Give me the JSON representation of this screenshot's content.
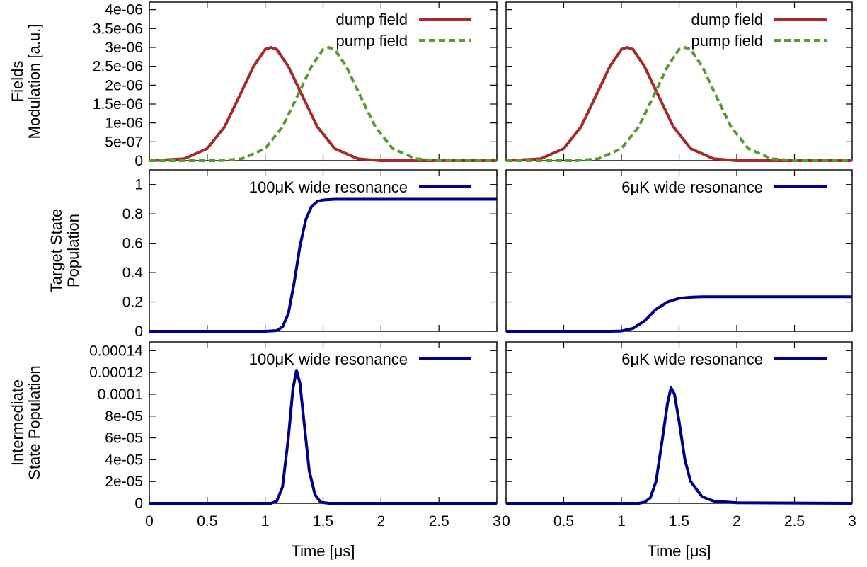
{
  "colors": {
    "dump": "#a52a2a",
    "pump": "#5a9a32",
    "population": "#00008b",
    "frame": "#000000",
    "background": "#ffffff"
  },
  "chart_data": [
    {
      "type": "line",
      "panel": "row1-left",
      "ylabel_lines": [
        "Fields",
        "Modulation [a.u.]"
      ],
      "xlim": [
        0,
        3
      ],
      "ylim": [
        0,
        4.2e-06
      ],
      "yticks": [
        0,
        5e-07,
        1e-06,
        1.5e-06,
        2e-06,
        2.5e-06,
        3e-06,
        3.5e-06,
        4e-06
      ],
      "ytick_labels": [
        "0",
        "5e-07",
        "1e-06",
        "1.5e-06",
        "2e-06",
        "2.5e-06",
        "3e-06",
        "3.5e-06",
        "4e-06"
      ],
      "legend_position": "top-right",
      "series": [
        {
          "name": "dump field",
          "style": "solid",
          "color_key": "dump",
          "x": [
            0,
            0.3,
            0.5,
            0.65,
            0.8,
            0.9,
            1.0,
            1.05,
            1.1,
            1.2,
            1.3,
            1.45,
            1.6,
            1.8,
            2.0,
            3.0
          ],
          "y": [
            0,
            5e-08,
            3.2e-07,
            9e-07,
            1.85e-06,
            2.5e-06,
            2.95e-06,
            3e-06,
            2.95e-06,
            2.5e-06,
            1.85e-06,
            9e-07,
            3.2e-07,
            5e-08,
            0,
            0
          ]
        },
        {
          "name": "pump field",
          "style": "dashed",
          "color_key": "pump",
          "x": [
            0,
            0.6,
            0.8,
            1.0,
            1.15,
            1.3,
            1.4,
            1.5,
            1.55,
            1.6,
            1.7,
            1.8,
            1.95,
            2.1,
            2.3,
            2.5,
            3.0
          ],
          "y": [
            0,
            0,
            5e-08,
            3.2e-07,
            9e-07,
            1.85e-06,
            2.5e-06,
            2.95e-06,
            3e-06,
            2.95e-06,
            2.5e-06,
            1.85e-06,
            9e-07,
            3.2e-07,
            5e-08,
            0,
            0
          ]
        }
      ]
    },
    {
      "type": "line",
      "panel": "row1-right",
      "xlim": [
        0,
        3
      ],
      "ylim": [
        0,
        4.2e-06
      ],
      "yticks": [
        0,
        5e-07,
        1e-06,
        1.5e-06,
        2e-06,
        2.5e-06,
        3e-06,
        3.5e-06,
        4e-06
      ],
      "legend_position": "top-right",
      "series": [
        {
          "name": "dump field",
          "style": "solid",
          "color_key": "dump",
          "x": [
            0,
            0.3,
            0.5,
            0.65,
            0.8,
            0.9,
            1.0,
            1.05,
            1.1,
            1.2,
            1.3,
            1.45,
            1.6,
            1.8,
            2.0,
            3.0
          ],
          "y": [
            0,
            5e-08,
            3.2e-07,
            9e-07,
            1.85e-06,
            2.5e-06,
            2.95e-06,
            3e-06,
            2.95e-06,
            2.5e-06,
            1.85e-06,
            9e-07,
            3.2e-07,
            5e-08,
            0,
            0
          ]
        },
        {
          "name": "pump field",
          "style": "dashed",
          "color_key": "pump",
          "x": [
            0,
            0.6,
            0.8,
            1.0,
            1.15,
            1.3,
            1.4,
            1.5,
            1.55,
            1.6,
            1.7,
            1.8,
            1.95,
            2.1,
            2.3,
            2.5,
            3.0
          ],
          "y": [
            0,
            0,
            5e-08,
            3.2e-07,
            9e-07,
            1.85e-06,
            2.5e-06,
            2.95e-06,
            3e-06,
            2.95e-06,
            2.5e-06,
            1.85e-06,
            9e-07,
            3.2e-07,
            5e-08,
            0,
            0
          ]
        }
      ]
    },
    {
      "type": "line",
      "panel": "row2-left",
      "ylabel_lines": [
        "Target State",
        "Population"
      ],
      "xlim": [
        0,
        3
      ],
      "ylim": [
        0,
        1.1
      ],
      "yticks": [
        0,
        0.2,
        0.4,
        0.6,
        0.8,
        1
      ],
      "ytick_labels": [
        "0",
        "0.2",
        "0.4",
        "0.6",
        "0.8",
        "1"
      ],
      "legend_position": "top-right",
      "series": [
        {
          "name": "100μK wide resonance",
          "style": "solid",
          "color_key": "population",
          "x": [
            0,
            1.0,
            1.1,
            1.15,
            1.2,
            1.25,
            1.3,
            1.35,
            1.4,
            1.45,
            1.5,
            1.6,
            2.0,
            3.0
          ],
          "y": [
            0,
            0,
            0.005,
            0.03,
            0.12,
            0.33,
            0.58,
            0.76,
            0.85,
            0.885,
            0.895,
            0.9,
            0.9,
            0.9
          ]
        }
      ]
    },
    {
      "type": "line",
      "panel": "row2-right",
      "xlim": [
        0,
        3
      ],
      "ylim": [
        0,
        1.1
      ],
      "yticks": [
        0,
        0.2,
        0.4,
        0.6,
        0.8,
        1
      ],
      "legend_position": "top-right",
      "series": [
        {
          "name": "6μK wide resonance",
          "style": "solid",
          "color_key": "population",
          "x": [
            0,
            0.9,
            1.0,
            1.1,
            1.2,
            1.3,
            1.4,
            1.5,
            1.6,
            1.7,
            2.0,
            3.0
          ],
          "y": [
            0,
            0,
            0.002,
            0.02,
            0.07,
            0.15,
            0.2,
            0.225,
            0.232,
            0.235,
            0.235,
            0.235
          ]
        }
      ]
    },
    {
      "type": "line",
      "panel": "row3-left",
      "ylabel_lines": [
        "Intermediate",
        "State Population"
      ],
      "xlabel": "Time [μs]",
      "xlim": [
        0,
        3
      ],
      "ylim": [
        0,
        0.000148
      ],
      "xticks": [
        0,
        0.5,
        1,
        1.5,
        2,
        2.5,
        3
      ],
      "xtick_labels": [
        "0",
        "0.5",
        "1",
        "1.5",
        "2",
        "2.5",
        "3"
      ],
      "yticks": [
        0,
        2e-05,
        4e-05,
        6e-05,
        8e-05,
        0.0001,
        0.00012,
        0.00014
      ],
      "ytick_labels": [
        "0",
        "2e-05",
        "4e-05",
        "6e-05",
        "8e-05",
        "0.0001",
        "0.00012",
        "0.00014"
      ],
      "legend_position": "top-right",
      "series": [
        {
          "name": "100μK wide resonance",
          "style": "solid",
          "color_key": "population",
          "x": [
            0,
            1.05,
            1.1,
            1.15,
            1.2,
            1.24,
            1.27,
            1.3,
            1.34,
            1.38,
            1.43,
            1.48,
            1.55,
            3.0
          ],
          "y": [
            0,
            0,
            2e-06,
            1.5e-05,
            6e-05,
            0.000105,
            0.000122,
            0.00011,
            7e-05,
            3e-05,
            8e-06,
            1e-06,
            0,
            0
          ]
        }
      ]
    },
    {
      "type": "line",
      "panel": "row3-right",
      "xlabel": "Time [μs]",
      "xlim": [
        0,
        3
      ],
      "ylim": [
        0,
        0.000148
      ],
      "xticks": [
        0,
        0.5,
        1,
        1.5,
        2,
        2.5,
        3
      ],
      "xtick_labels": [
        "0",
        "0.5",
        "1",
        "1.5",
        "2",
        "2.5",
        "3"
      ],
      "yticks": [
        0,
        2e-05,
        4e-05,
        6e-05,
        8e-05,
        0.0001,
        0.00012,
        0.00014
      ],
      "legend_position": "top-right",
      "series": [
        {
          "name": "6μK wide resonance",
          "style": "solid",
          "color_key": "population",
          "x": [
            0,
            1.15,
            1.2,
            1.25,
            1.3,
            1.35,
            1.4,
            1.43,
            1.46,
            1.5,
            1.55,
            1.6,
            1.7,
            1.8,
            2.0,
            3.0
          ],
          "y": [
            0,
            0,
            1e-06,
            5e-06,
            2e-05,
            5.5e-05,
            9.2e-05,
            0.000106,
            0.0001,
            7.5e-05,
            4e-05,
            2e-05,
            6e-06,
            2e-06,
            5e-07,
            0
          ]
        }
      ]
    }
  ]
}
